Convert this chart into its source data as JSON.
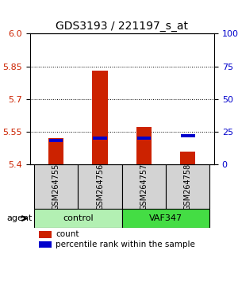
{
  "title": "GDS3193 / 221197_s_at",
  "samples": [
    "GSM264755",
    "GSM264756",
    "GSM264757",
    "GSM264758"
  ],
  "groups": [
    "control",
    "control",
    "VAF347",
    "VAF347"
  ],
  "group_labels": [
    "control",
    "VAF347"
  ],
  "group_colors": [
    "#b3f0b3",
    "#33cc33"
  ],
  "ylim_left": [
    5.4,
    6.0
  ],
  "yticks_left": [
    5.4,
    5.55,
    5.7,
    5.85,
    6.0
  ],
  "yticks_right": [
    0,
    25,
    50,
    75,
    100
  ],
  "ylim_right": [
    0,
    100
  ],
  "count_values": [
    5.52,
    5.83,
    5.57,
    5.46
  ],
  "count_base": 5.4,
  "percentile_values": [
    18,
    20,
    20,
    22
  ],
  "percentile_base": 0,
  "bar_width": 0.35,
  "count_color": "#cc2200",
  "percentile_color": "#0000cc",
  "bg_color": "#ffffff",
  "grid_color": "#000000",
  "agent_label": "agent",
  "legend_count": "count",
  "legend_percentile": "percentile rank within the sample",
  "xlabel_color_left": "#cc2200",
  "xlabel_color_right": "#0000cc"
}
